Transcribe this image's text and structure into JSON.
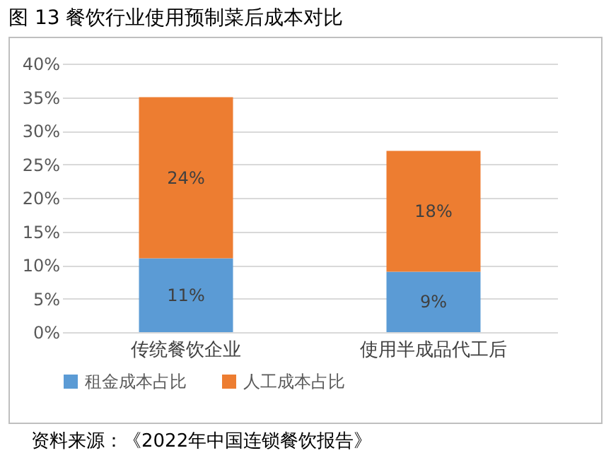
{
  "chart_data": {
    "type": "bar",
    "title": "图 13 餐饮行业使用预制菜后成本对比",
    "annotations": [
      "资料来源：《2022年中国连锁餐饮报告》"
    ],
    "categories": [
      "传统餐饮企业",
      "使用半成品代工后"
    ],
    "series": [
      {
        "name": "租金成本占比",
        "color": "#5b9bd5",
        "values": [
          11,
          9
        ],
        "value_labels": [
          "11%",
          "9%"
        ]
      },
      {
        "name": "人工成本占比",
        "color": "#ed7d31",
        "values": [
          24,
          18
        ],
        "value_labels": [
          "24%",
          "18%"
        ]
      }
    ],
    "stacked": true,
    "ylim": [
      0,
      40
    ],
    "yticks": [
      {
        "value": 0,
        "label": "0%"
      },
      {
        "value": 5,
        "label": "5%"
      },
      {
        "value": 10,
        "label": "10%"
      },
      {
        "value": 15,
        "label": "15%"
      },
      {
        "value": 20,
        "label": "20%"
      },
      {
        "value": 25,
        "label": "25%"
      },
      {
        "value": 30,
        "label": "30%"
      },
      {
        "value": 35,
        "label": "35%"
      },
      {
        "value": 40,
        "label": "40%"
      }
    ],
    "grid": "y",
    "legend": "bottom"
  }
}
